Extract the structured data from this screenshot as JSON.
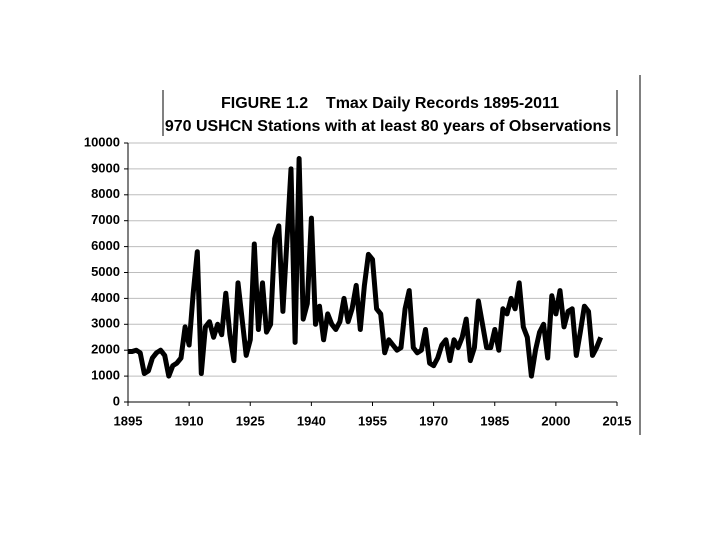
{
  "chart_data": {
    "type": "line",
    "title": "FIGURE 1.2    Tmax Daily Records 1895-2011",
    "subtitle": "970 USHCN Stations with at least 80 years of Observations",
    "x": [
      1895,
      1896,
      1897,
      1898,
      1899,
      1900,
      1901,
      1902,
      1903,
      1904,
      1905,
      1906,
      1907,
      1908,
      1909,
      1910,
      1911,
      1912,
      1913,
      1914,
      1915,
      1916,
      1917,
      1918,
      1919,
      1920,
      1921,
      1922,
      1923,
      1924,
      1925,
      1926,
      1927,
      1928,
      1929,
      1930,
      1931,
      1932,
      1933,
      1934,
      1935,
      1936,
      1937,
      1938,
      1939,
      1940,
      1941,
      1942,
      1943,
      1944,
      1945,
      1946,
      1947,
      1948,
      1949,
      1950,
      1951,
      1952,
      1953,
      1954,
      1955,
      1956,
      1957,
      1958,
      1959,
      1960,
      1961,
      1962,
      1963,
      1964,
      1965,
      1966,
      1967,
      1968,
      1969,
      1970,
      1971,
      1972,
      1973,
      1974,
      1975,
      1976,
      1977,
      1978,
      1979,
      1980,
      1981,
      1982,
      1983,
      1984,
      1985,
      1986,
      1987,
      1988,
      1989,
      1990,
      1991,
      1992,
      1993,
      1994,
      1995,
      1996,
      1997,
      1998,
      1999,
      2000,
      2001,
      2002,
      2003,
      2004,
      2005,
      2006,
      2007,
      2008,
      2009,
      2010,
      2011
    ],
    "series": [
      {
        "name": "Tmax Daily Records",
        "color": "#000000",
        "values": [
          1950,
          1950,
          2000,
          1900,
          1100,
          1200,
          1700,
          1900,
          2000,
          1800,
          1000,
          1400,
          1500,
          1700,
          2900,
          2200,
          4200,
          5800,
          1100,
          2900,
          3100,
          2500,
          3000,
          2600,
          4200,
          2600,
          1600,
          4600,
          3200,
          1800,
          2400,
          6100,
          2800,
          4600,
          2700,
          3000,
          6300,
          6800,
          3500,
          6200,
          9000,
          2300,
          9400,
          3200,
          3800,
          7100,
          3000,
          3700,
          2400,
          3400,
          3000,
          2800,
          3100,
          4000,
          3100,
          3600,
          4500,
          2800,
          4500,
          5700,
          5500,
          3600,
          3400,
          1900,
          2400,
          2200,
          2000,
          2100,
          3600,
          4300,
          2100,
          1900,
          2000,
          2800,
          1500,
          1400,
          1700,
          2200,
          2400,
          1600,
          2400,
          2100,
          2500,
          3200,
          1600,
          2100,
          3900,
          3000,
          2100,
          2100,
          2800,
          2000,
          3600,
          3400,
          4000,
          3600,
          4600,
          2900,
          2500,
          1000,
          2000,
          2700,
          3000,
          1700,
          4100,
          3400,
          4300,
          2900,
          3500,
          3600,
          1800,
          2700,
          3700,
          3500,
          1800,
          2100,
          2500
        ]
      }
    ],
    "xlim": [
      1895,
      2015
    ],
    "xticks": [
      1895,
      1910,
      1925,
      1940,
      1955,
      1970,
      1985,
      2000,
      2015
    ],
    "ylim": [
      0,
      10000
    ],
    "yticks": [
      0,
      1000,
      2000,
      3000,
      4000,
      5000,
      6000,
      7000,
      8000,
      9000,
      10000
    ],
    "grid": true
  }
}
